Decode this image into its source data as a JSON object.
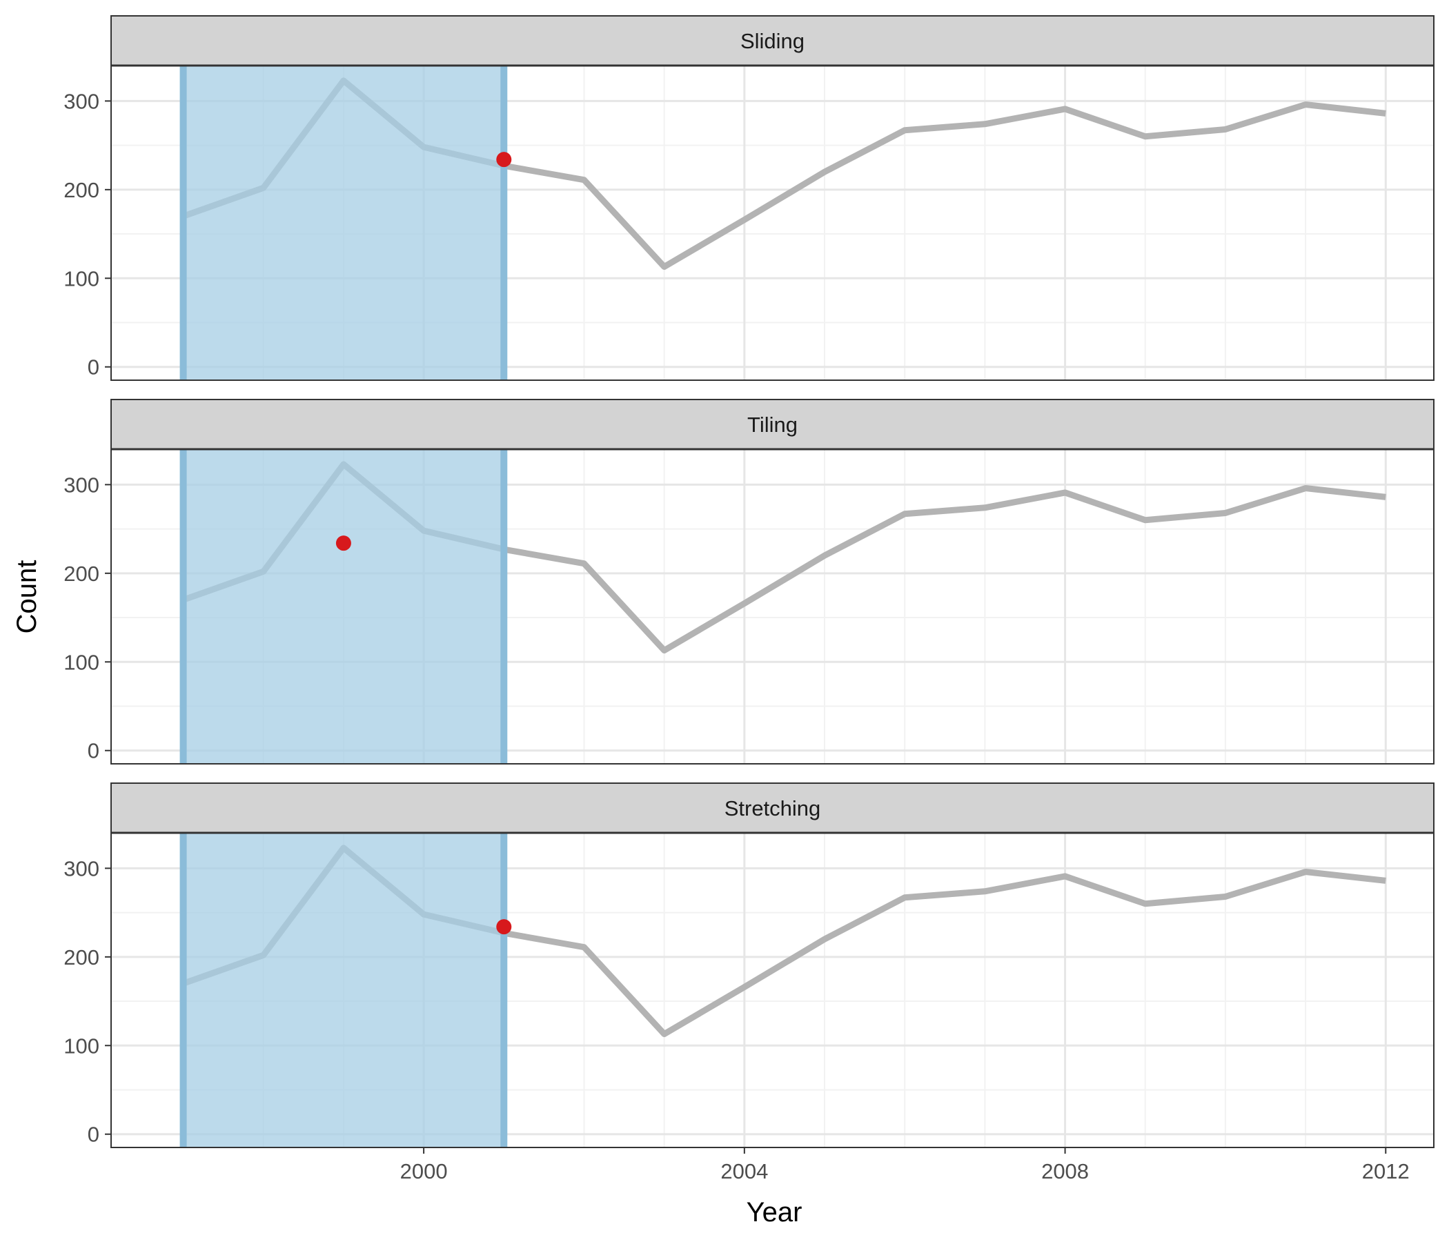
{
  "chart_data": {
    "type": "line",
    "xlabel": "Year",
    "ylabel": "Count",
    "xlim": [
      1996.1,
      2012.6
    ],
    "ylim": [
      -15,
      340
    ],
    "x_ticks": [
      2000,
      2004,
      2008,
      2012
    ],
    "y_ticks": [
      0,
      100,
      200,
      300
    ],
    "grid": true,
    "colors": {
      "line": "#b3b3b3",
      "window_fill": "#a6cde4",
      "window_border": "#8bbcd9",
      "point": "#d7191c",
      "strip": "#d3d3d3",
      "grid_major": "#e6e6e6",
      "grid_minor": "#f2f2f2"
    },
    "series_data": {
      "x": [
        1997,
        1998,
        1999,
        2000,
        2001,
        2002,
        2003,
        2004,
        2005,
        2006,
        2007,
        2008,
        2009,
        2010,
        2011,
        2012
      ],
      "y": [
        170,
        202,
        323,
        248,
        227,
        211,
        113,
        166,
        220,
        267,
        274,
        291,
        260,
        268,
        296,
        286
      ]
    },
    "panels": [
      {
        "strip_label": "Sliding",
        "window": [
          1997,
          2001
        ],
        "point": {
          "x": 2001,
          "y": 234
        }
      },
      {
        "strip_label": "Tiling",
        "window": [
          1997,
          2001
        ],
        "point": {
          "x": 1999,
          "y": 234
        }
      },
      {
        "strip_label": "Stretching",
        "window": [
          1997,
          2001
        ],
        "point": {
          "x": 2001,
          "y": 234
        }
      }
    ]
  }
}
